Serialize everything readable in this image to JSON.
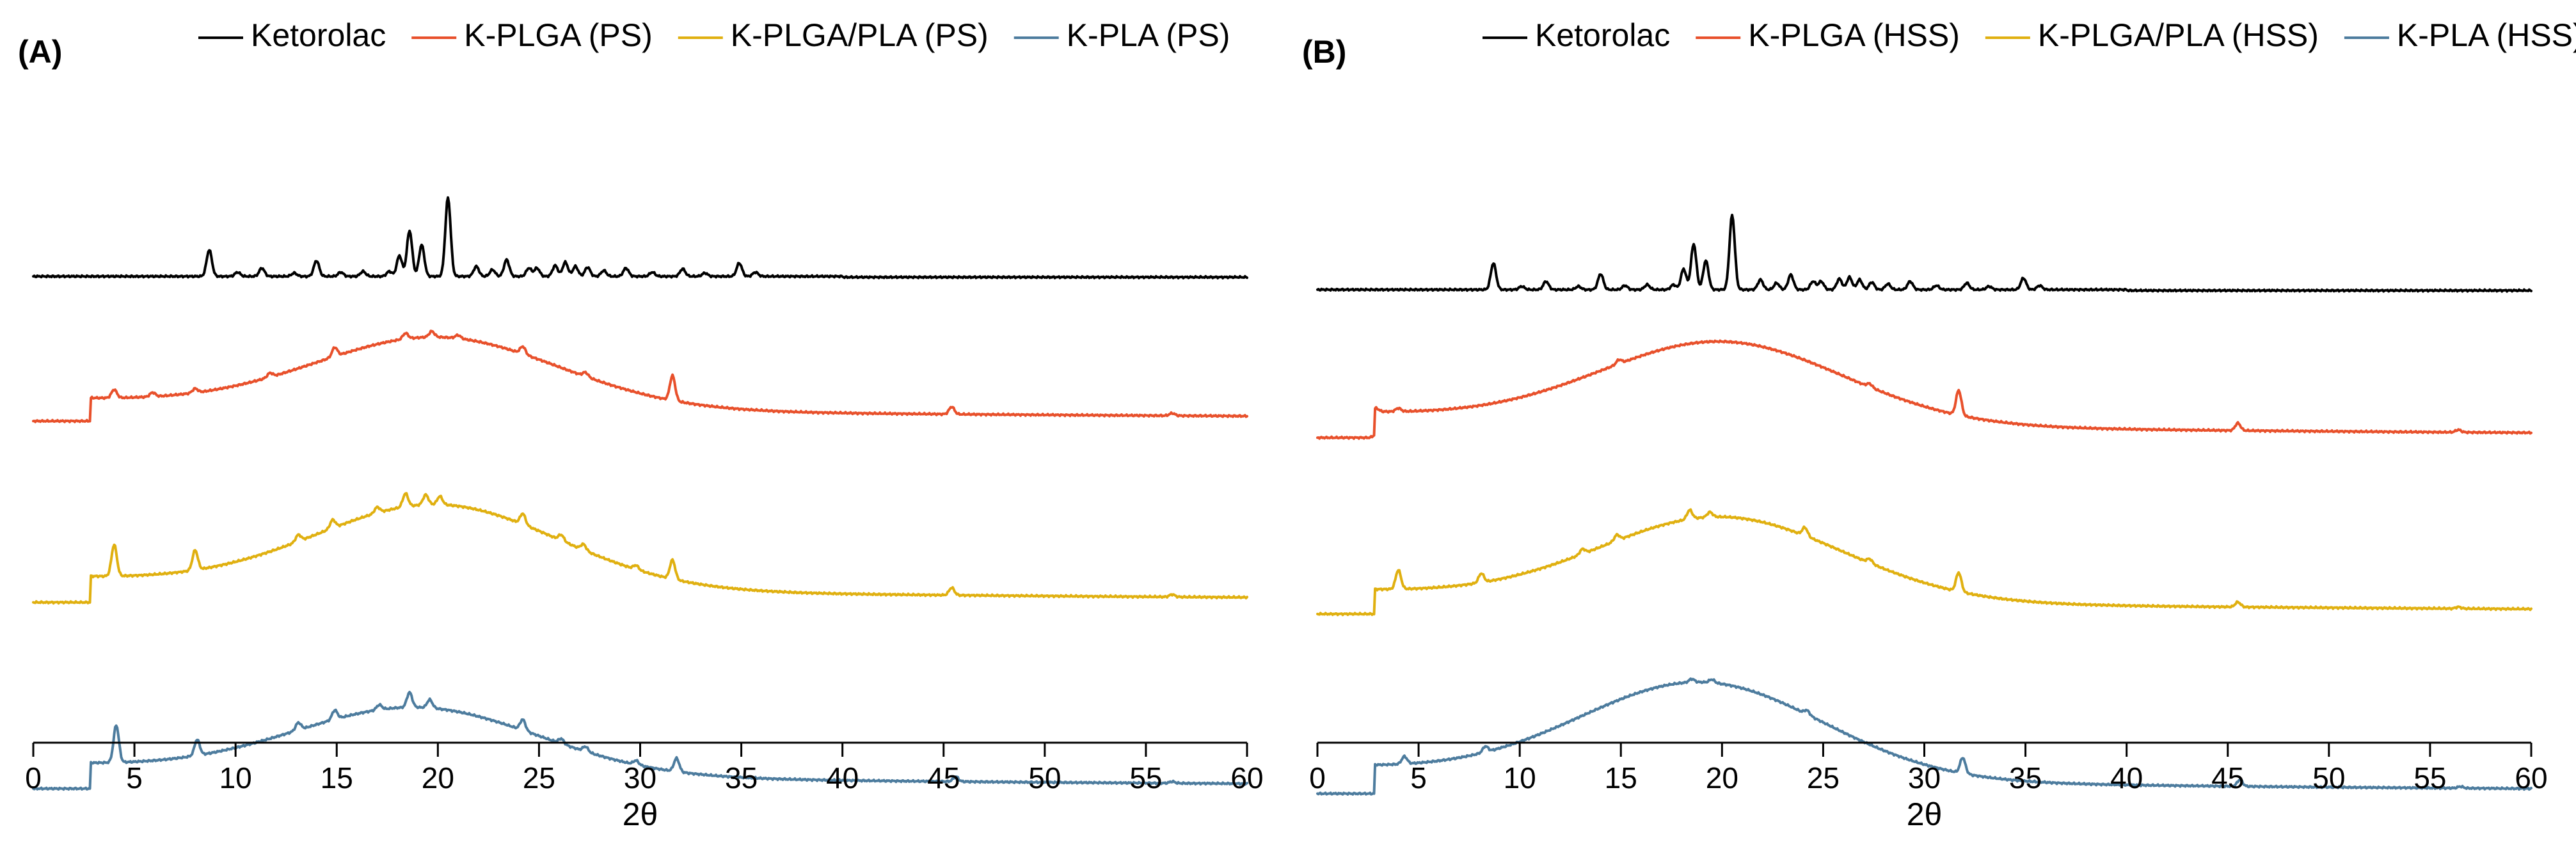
{
  "chart_data": [
    {
      "type": "line",
      "panel_label": "(A)",
      "xlabel": "2θ",
      "ylabel": "",
      "xlim": [
        0,
        60
      ],
      "x_ticks": [
        0,
        5,
        10,
        15,
        20,
        25,
        30,
        35,
        40,
        45,
        50,
        55,
        60
      ],
      "grid": false,
      "legend_position": "top",
      "y_axis_shown": false,
      "series": [
        {
          "name": "Ketorolac",
          "color": "#000000",
          "baseline": 120,
          "peaks": [
            [
              8.7,
              32
            ],
            [
              10.1,
              5
            ],
            [
              11.3,
              10
            ],
            [
              12.9,
              4
            ],
            [
              14.0,
              19
            ],
            [
              15.2,
              5
            ],
            [
              16.3,
              6
            ],
            [
              17.6,
              6
            ],
            [
              18.1,
              25
            ],
            [
              18.6,
              55
            ],
            [
              19.2,
              38
            ],
            [
              20.5,
              95
            ],
            [
              21.9,
              12
            ],
            [
              22.7,
              8
            ],
            [
              23.4,
              20
            ],
            [
              24.5,
              10
            ],
            [
              24.9,
              10
            ],
            [
              25.8,
              13
            ],
            [
              26.3,
              17
            ],
            [
              26.8,
              12
            ],
            [
              27.4,
              11
            ],
            [
              28.2,
              7
            ],
            [
              29.3,
              10
            ],
            [
              30.6,
              5
            ],
            [
              32.1,
              9
            ],
            [
              33.2,
              4
            ],
            [
              34.9,
              16
            ],
            [
              35.7,
              5
            ]
          ],
          "hump": [
            0,
            20,
            6
          ],
          "end_drop": 1
        },
        {
          "name": "K-PLGA (PS)",
          "color": "#e8502b",
          "baseline": 204,
          "peaks": [
            [
              4.0,
              10
            ],
            [
              5.9,
              5
            ],
            [
              8.0,
              5
            ],
            [
              11.7,
              5
            ],
            [
              14.9,
              11
            ],
            [
              18.4,
              7
            ],
            [
              19.7,
              7
            ],
            [
              21.0,
              4
            ],
            [
              24.2,
              9
            ],
            [
              27.3,
              5
            ],
            [
              31.6,
              30
            ],
            [
              45.4,
              9
            ],
            [
              56.3,
              3
            ]
          ],
          "hump": [
            85,
            20,
            6
          ],
          "end_drop": 24
        },
        {
          "name": "K-PLGA/PLA (PS)",
          "color": "#e0b010",
          "baseline": 313,
          "peaks": [
            [
              4.0,
              38
            ],
            [
              8.0,
              24
            ],
            [
              13.1,
              8
            ],
            [
              14.8,
              10
            ],
            [
              17.0,
              7
            ],
            [
              18.4,
              16
            ],
            [
              19.4,
              12
            ],
            [
              20.1,
              10
            ],
            [
              24.2,
              13
            ],
            [
              26.1,
              7
            ],
            [
              27.2,
              7
            ],
            [
              29.8,
              5
            ],
            [
              31.6,
              23
            ],
            [
              45.4,
              9
            ],
            [
              56.3,
              3
            ]
          ],
          "hump": [
            100,
            20,
            6
          ],
          "end_drop": 28
        },
        {
          "name": "K-PLA (PS)",
          "color": "#4d7c9e",
          "baseline": 425,
          "peaks": [
            [
              4.1,
              45
            ],
            [
              8.1,
              19
            ],
            [
              13.1,
              9
            ],
            [
              14.9,
              11
            ],
            [
              17.1,
              6
            ],
            [
              18.6,
              18
            ],
            [
              19.6,
              10
            ],
            [
              24.2,
              13
            ],
            [
              26.1,
              6
            ],
            [
              27.3,
              6
            ],
            [
              29.8,
              5
            ],
            [
              31.8,
              16
            ],
            [
              45.6,
              6
            ],
            [
              56.3,
              2
            ]
          ],
          "hump": [
            80,
            19,
            6
          ],
          "end_drop": 27
        }
      ]
    },
    {
      "type": "line",
      "panel_label": "(B)",
      "xlabel": "2θ",
      "ylabel": "",
      "xlim": [
        0,
        60
      ],
      "x_ticks": [
        0,
        5,
        10,
        15,
        20,
        25,
        30,
        35,
        40,
        45,
        50,
        55,
        60
      ],
      "grid": false,
      "legend_position": "top",
      "y_axis_shown": false,
      "series": [
        {
          "name": "Ketorolac",
          "color": "#000000",
          "baseline": 128,
          "peaks": [
            [
              8.7,
              32
            ],
            [
              10.1,
              4
            ],
            [
              11.3,
              10
            ],
            [
              12.9,
              4
            ],
            [
              14.0,
              19
            ],
            [
              15.2,
              5
            ],
            [
              16.3,
              6
            ],
            [
              17.6,
              6
            ],
            [
              18.1,
              25
            ],
            [
              18.6,
              55
            ],
            [
              19.2,
              35
            ],
            [
              20.5,
              90
            ],
            [
              21.9,
              12
            ],
            [
              22.7,
              8
            ],
            [
              23.4,
              18
            ],
            [
              24.5,
              10
            ],
            [
              24.9,
              10
            ],
            [
              25.8,
              13
            ],
            [
              26.3,
              15
            ],
            [
              26.8,
              12
            ],
            [
              27.4,
              9
            ],
            [
              28.2,
              7
            ],
            [
              29.3,
              10
            ],
            [
              30.6,
              5
            ],
            [
              32.1,
              8
            ],
            [
              33.2,
              4
            ],
            [
              34.9,
              14
            ],
            [
              35.7,
              5
            ]
          ],
          "hump": [
            0,
            20,
            6
          ],
          "end_drop": 1
        },
        {
          "name": "K-PLGA (HSS)",
          "color": "#e8502b",
          "baseline": 214,
          "peaks": [
            [
              2.9,
              4
            ],
            [
              4.0,
              4
            ],
            [
              14.9,
              5
            ],
            [
              27.3,
              4
            ],
            [
              31.7,
              30
            ],
            [
              45.5,
              9
            ],
            [
              56.4,
              3
            ]
          ],
          "hump": [
            98,
            20,
            6
          ],
          "end_drop": 28
        },
        {
          "name": "K-PLGA/PLA (HSS)",
          "color": "#e0b010",
          "baseline": 320,
          "peaks": [
            [
              4.0,
              23
            ],
            [
              8.1,
              11
            ],
            [
              13.1,
              6
            ],
            [
              14.8,
              7
            ],
            [
              18.4,
              11
            ],
            [
              19.4,
              6
            ],
            [
              24.1,
              10
            ],
            [
              27.3,
              5
            ],
            [
              31.7,
              23
            ],
            [
              45.5,
              6
            ],
            [
              56.4,
              2
            ]
          ],
          "hump": [
            100,
            20,
            6
          ],
          "end_drop": 26
        },
        {
          "name": "K-PLA (HSS)",
          "color": "#4d7c9e",
          "baseline": 428,
          "peaks": [
            [
              4.3,
              9
            ],
            [
              8.3,
              7
            ],
            [
              18.5,
              4
            ],
            [
              19.5,
              4
            ],
            [
              24.2,
              5
            ],
            [
              31.9,
              19
            ],
            [
              45.6,
              8
            ],
            [
              56.5,
              2
            ]
          ],
          "hump": [
            115,
            19,
            6
          ],
          "end_drop": 30
        }
      ]
    }
  ]
}
